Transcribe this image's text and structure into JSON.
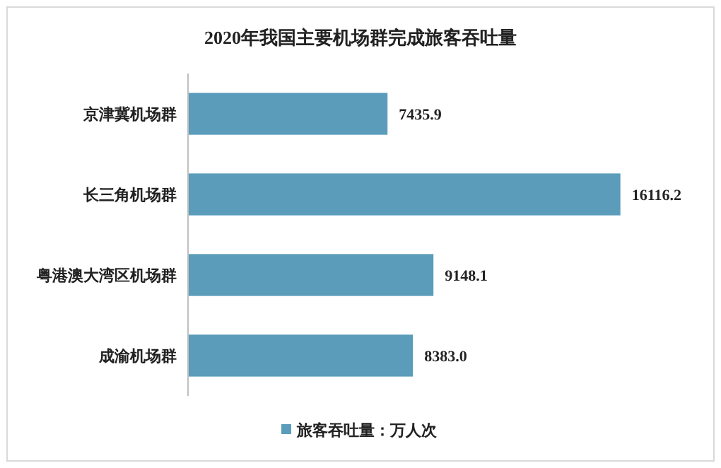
{
  "chart_data": {
    "type": "bar",
    "orientation": "horizontal",
    "title": "2020年我国主要机场群完成旅客吞吐量",
    "categories": [
      "京津冀机场群",
      "长三角机场群",
      "粤港澳大湾区机场群",
      "成渝机场群"
    ],
    "series": [
      {
        "name": "旅客吞吐量：万人次",
        "color": "#5b9cbb",
        "values": [
          7435.9,
          16116.2,
          9148.1,
          8383.0
        ],
        "value_labels": [
          "7435.9",
          "16116.2",
          "9148.1",
          "8383.0"
        ]
      }
    ],
    "legend": "bottom"
  }
}
